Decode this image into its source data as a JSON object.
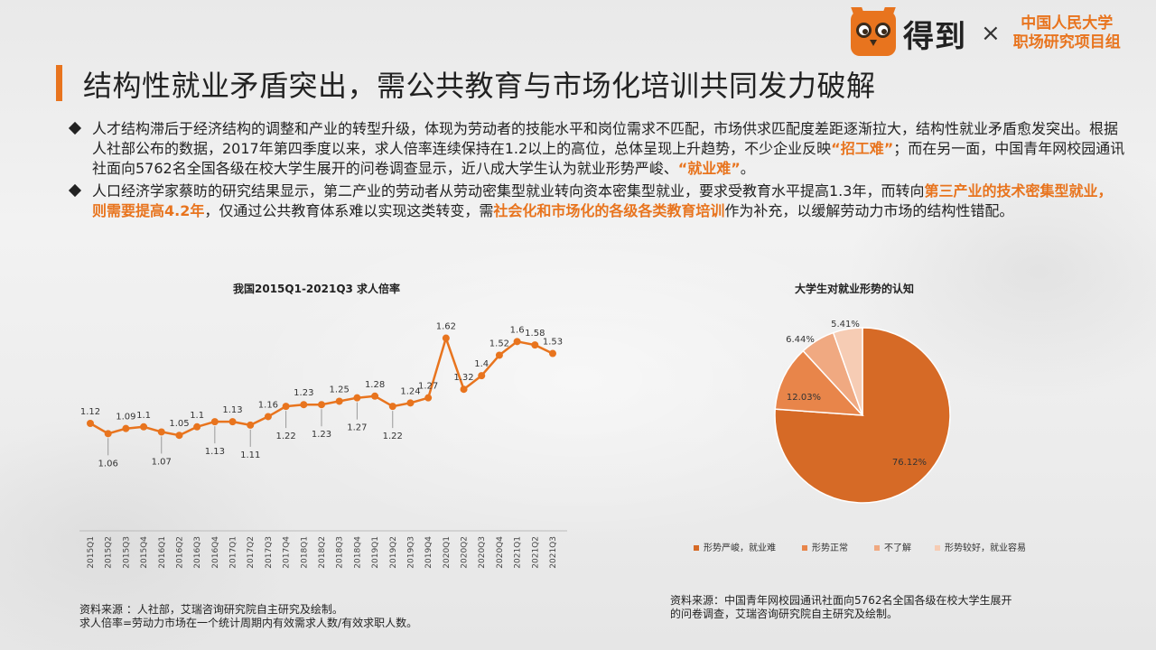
{
  "header": {
    "title": "结构性就业矛盾突出，需公共教育与市场化培训共同发力破解",
    "brand": "得到",
    "times": "×",
    "partner_line1": "中国人民大学",
    "partner_line2": "职场研究项目组"
  },
  "bullets": [
    {
      "t1": "人才结构滞后于经济结构的调整和产业的转型升级，体现为劳动者的技能水平和岗位需求不匹配，市场供求匹配度差距逐渐拉大，结构性就业矛盾愈发突出。根据人社部公布的数据，2017年第四季度以来，求人倍率连续保持在1.2以上的高位，总体呈现上升趋势，不少企业反映",
      "h1": "“招工难”",
      "t2": "；而在另一面，中国青年网校园通讯社面向5762名全国各级在校大学生展开的问卷调查显示，近八成大学生认为就业形势严峻、",
      "h2": "“就业难”",
      "t3": "。"
    },
    {
      "t1": "人口经济学家蔡昉的研究结果显示，第二产业的劳动者从劳动密集型就业转向资本密集型就业，要求受教育水平提高1.3年，而转向",
      "h1": "第三产业的技术密集型就业，则需要提高4.2年",
      "t2": "，仅通过公共教育体系难以实现这类转变，需",
      "h2": "社会化和市场化的各级各类教育培训",
      "t3": "作为补充，以缓解劳动力市场的结构性错配。"
    }
  ],
  "line_chart": {
    "title": "我国2015Q1-2021Q3 求人倍率",
    "source1": "资料来源 ：人社部，艾瑞咨询研究院自主研究及绘制。",
    "source2": "求人倍率=劳动力市场在一个统计周期内有效需求人数/有效求职人数。"
  },
  "pie_chart": {
    "title": "大学生对就业形势的认知",
    "source1": "资料来源：中国青年网校园通讯社面向5762名全国各级在校大学生展开",
    "source2": "的问卷调查，艾瑞咨询研究院自主研究及绘制。"
  },
  "chart_data": [
    {
      "type": "line",
      "title": "我国2015Q1-2021Q3 求人倍率",
      "categories": [
        "2015Q1",
        "2015Q2",
        "2015Q3",
        "2015Q4",
        "2016Q1",
        "2016Q2",
        "2016Q3",
        "2016Q4",
        "2017Q1",
        "2017Q2",
        "2017Q3",
        "2017Q4",
        "2018Q1",
        "2018Q2",
        "2018Q3",
        "2018Q4",
        "2019Q1",
        "2019Q2",
        "2019Q3",
        "2019Q4",
        "2020Q1",
        "2020Q2",
        "2020Q3",
        "2020Q4",
        "2021Q1",
        "2021Q2",
        "2021Q3"
      ],
      "values": [
        1.12,
        1.06,
        1.09,
        1.1,
        1.07,
        1.05,
        1.1,
        1.13,
        1.13,
        1.11,
        1.16,
        1.22,
        1.23,
        1.23,
        1.25,
        1.27,
        1.28,
        1.22,
        1.24,
        1.27,
        1.62,
        1.32,
        1.4,
        1.52,
        1.6,
        1.58,
        1.53
      ],
      "labels": [
        "1.12",
        "1.06",
        "1.09",
        "1.1",
        "1.07",
        "1.05",
        "1.1",
        "1.13",
        "1.13",
        "1.11",
        "1.16",
        "1.22",
        "1.23",
        "1.23",
        "1.25",
        "1.27",
        "1.28",
        "1.22",
        "1.24",
        "1.27",
        "1.62",
        "1.32",
        "1.4",
        "1.52",
        "1.6",
        "1.58",
        "1.53"
      ],
      "label_pos": [
        "above",
        "below",
        "above",
        "above",
        "below",
        "above",
        "above",
        "below",
        "above",
        "below",
        "above",
        "below",
        "above",
        "below",
        "above",
        "below",
        "above",
        "below",
        "above",
        "above",
        "above",
        "above",
        "above",
        "above",
        "above",
        "above",
        "above"
      ],
      "ylim": [
        0.85,
        1.75
      ],
      "color": "#e8741e"
    },
    {
      "type": "pie",
      "title": "大学生对就业形势的认知",
      "labels": [
        "形势严峻，就业难",
        "形势正常",
        "不了解",
        "形势较好，就业容易"
      ],
      "values": [
        76.12,
        12.03,
        6.44,
        5.41
      ],
      "value_labels": [
        "76.12%",
        "12.03%",
        "6.44%",
        "5.41%"
      ],
      "colors": [
        "#d66a26",
        "#e8854a",
        "#f0a981",
        "#f6ccb4"
      ]
    }
  ]
}
